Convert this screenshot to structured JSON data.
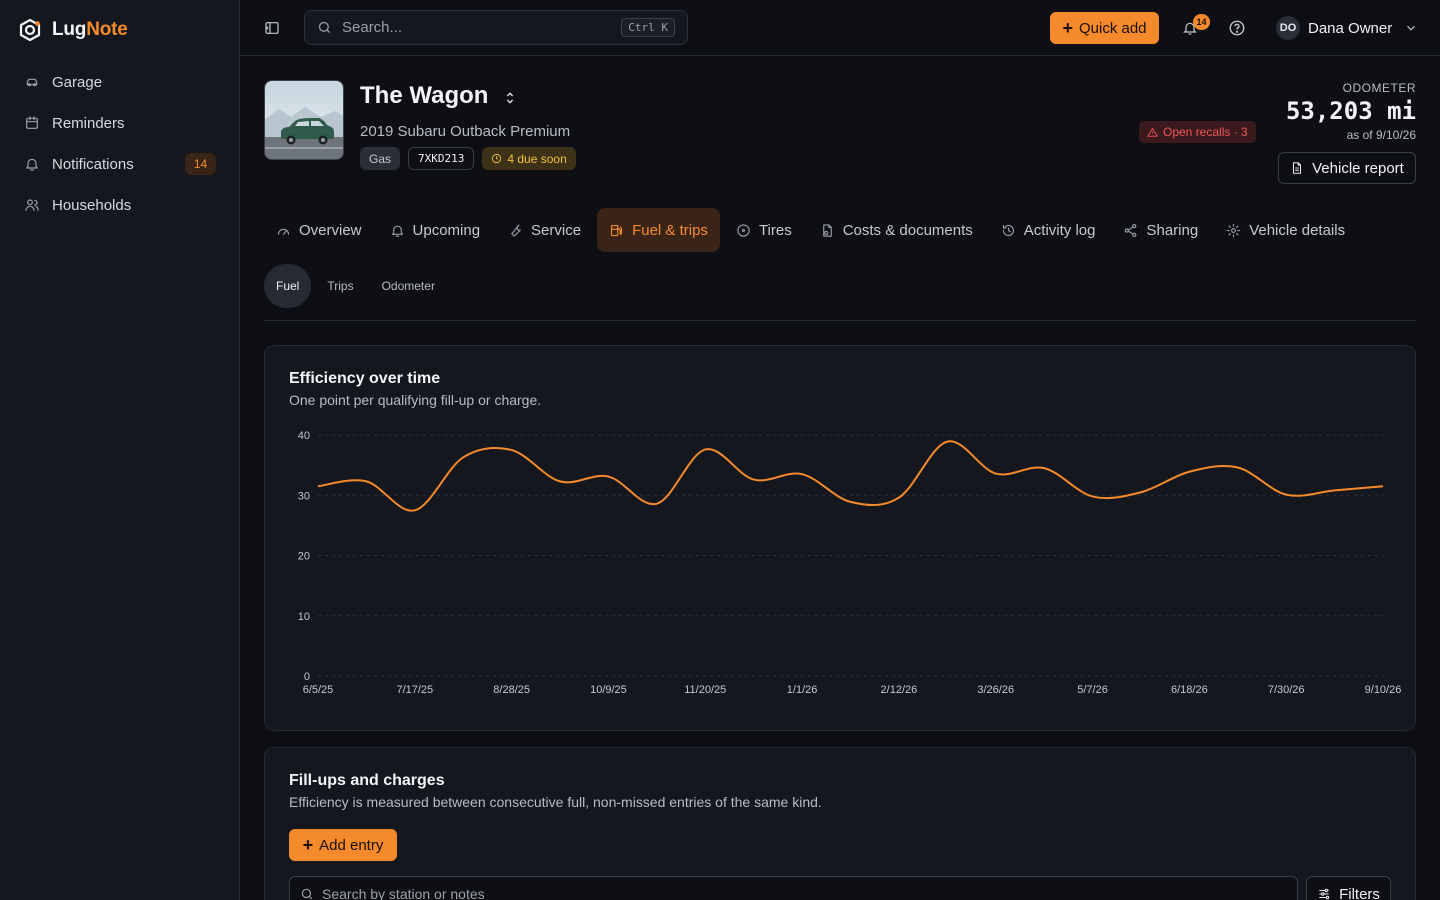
{
  "app": {
    "brand_a": "Lug",
    "brand_b": "Note",
    "accent": "#f58a2c"
  },
  "sidebar": {
    "items": [
      {
        "label": "Garage",
        "icon": "car-icon"
      },
      {
        "label": "Reminders",
        "icon": "calendar-icon"
      },
      {
        "label": "Notifications",
        "icon": "bell-icon",
        "count": "14"
      },
      {
        "label": "Households",
        "icon": "users-icon"
      }
    ]
  },
  "topbar": {
    "search_placeholder": "Search...",
    "shortcut": "Ctrl K",
    "quick_add": "Quick add",
    "notif_count": "14",
    "user_initials": "DO",
    "user_name": "Dana Owner"
  },
  "vehicle": {
    "name": "The Wagon",
    "subtitle": "2019 Subaru Outback Premium",
    "fuel": "Gas",
    "plate": "7XKD213",
    "due": "4 due soon",
    "recalls": "Open recalls · 3",
    "odometer_label": "ODOMETER",
    "odometer_value": "53,203 mi",
    "odometer_asof": "as of 9/10/26",
    "report": "Vehicle report"
  },
  "tabs": [
    {
      "label": "Overview",
      "icon": "gauge-icon"
    },
    {
      "label": "Upcoming",
      "icon": "bell-icon"
    },
    {
      "label": "Service",
      "icon": "wrench-icon"
    },
    {
      "label": "Fuel & trips",
      "icon": "fuel-icon",
      "active": true
    },
    {
      "label": "Tires",
      "icon": "circle-icon"
    },
    {
      "label": "Costs & documents",
      "icon": "document-icon"
    },
    {
      "label": "Activity log",
      "icon": "history-icon"
    },
    {
      "label": "Sharing",
      "icon": "share-icon"
    },
    {
      "label": "Vehicle details",
      "icon": "gear-icon"
    }
  ],
  "subtabs": [
    {
      "label": "Fuel",
      "active": true
    },
    {
      "label": "Trips"
    },
    {
      "label": "Odometer"
    }
  ],
  "efficiency": {
    "title": "Efficiency over time",
    "desc": "One point per qualifying fill-up or charge."
  },
  "chart_data": {
    "type": "line",
    "title": "Efficiency over time",
    "xlabel": "",
    "ylabel": "",
    "ylim": [
      0,
      40
    ],
    "y_ticks": [
      0,
      10,
      20,
      30,
      40
    ],
    "x_ticks": [
      "6/5/25",
      "7/17/25",
      "8/28/25",
      "10/9/25",
      "11/20/25",
      "1/1/26",
      "2/12/26",
      "3/26/26",
      "5/7/26",
      "6/18/26",
      "7/30/26",
      "9/10/26"
    ],
    "x": [
      "6/5/25",
      "6/26/25",
      "7/17/25",
      "8/7/25",
      "8/28/25",
      "9/18/25",
      "10/9/25",
      "10/30/25",
      "11/20/25",
      "12/11/25",
      "1/1/26",
      "1/22/26",
      "2/12/26",
      "3/5/26",
      "3/26/26",
      "4/16/26",
      "5/7/26",
      "5/28/26",
      "6/18/26",
      "7/9/26",
      "7/30/26",
      "8/20/26",
      "9/10/26"
    ],
    "series": [
      {
        "values": [
          31.5,
          32.3,
          27.5,
          36.3,
          37.5,
          32.3,
          33.1,
          28.6,
          37.6,
          32.6,
          33.5,
          28.9,
          29.6,
          38.9,
          33.6,
          34.5,
          29.8,
          30.5,
          33.9,
          34.6,
          30.1,
          30.8,
          31.5
        ],
        "color": "#f58a2c"
      }
    ],
    "grid": true
  },
  "fills": {
    "title": "Fill-ups and charges",
    "desc": "Efficiency is measured between consecutive full, non-missed entries of the same kind.",
    "add": "Add entry",
    "search_placeholder": "Search by station or notes",
    "filters": "Filters"
  }
}
